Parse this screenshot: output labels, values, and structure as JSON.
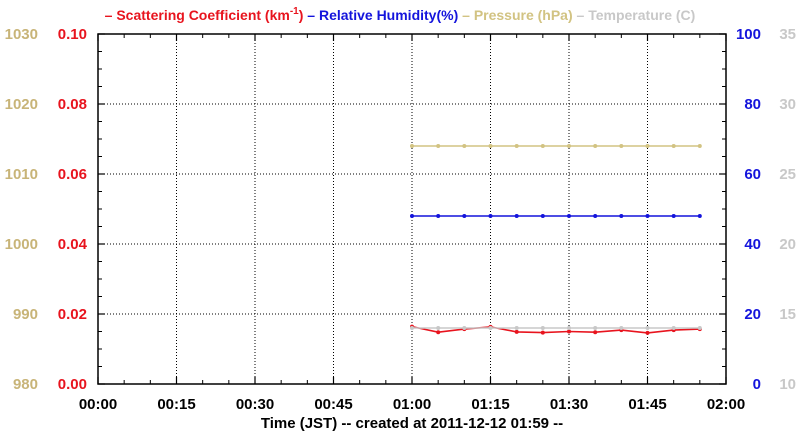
{
  "chart_data": {
    "type": "line",
    "legend": [
      {
        "key": "scat",
        "label": "Scattering Coefficient (km",
        "sup": "-1",
        "suffix": ")",
        "color": "#e8141e"
      },
      {
        "key": "rh",
        "label": "Relative Humidity(%)",
        "color": "#1414dc"
      },
      {
        "key": "pres",
        "label": "Pressure (hPa)",
        "color": "#d2c382"
      },
      {
        "key": "temp",
        "label": "Temperature (",
        "suffix": "C)",
        "color": "#c8c8c8"
      }
    ],
    "legend_dash": "–",
    "xlabel": "Time (JST)",
    "created_note": "-- created at 2011-12-12 01:59 --",
    "x_ticks": [
      "00:00",
      "00:15",
      "00:30",
      "00:45",
      "01:00",
      "01:15",
      "01:30",
      "01:45",
      "02:00"
    ],
    "xlim_minutes": [
      0,
      120
    ],
    "axes": {
      "pressure": {
        "ticks": [
          "1030",
          "1020",
          "1010",
          "1000",
          "990",
          "980"
        ],
        "range": [
          980,
          1030
        ],
        "color": "#c8b478"
      },
      "scattering": {
        "ticks": [
          "0.10",
          "0.08",
          "0.06",
          "0.04",
          "0.02",
          "0.00"
        ],
        "range": [
          0,
          0.1
        ],
        "color": "#e8141e"
      },
      "humidity": {
        "ticks": [
          "100",
          "80",
          "60",
          "40",
          "20",
          "0"
        ],
        "range": [
          0,
          100
        ],
        "color": "#1414dc"
      },
      "temperature": {
        "ticks": [
          "35",
          "30",
          "25",
          "20",
          "15",
          "10"
        ],
        "range": [
          10,
          35
        ],
        "color": "#c8c8c8"
      }
    },
    "grid": true,
    "series": [
      {
        "name": "Pressure (hPa)",
        "axis": "pressure",
        "color": "#d2c382",
        "x_minutes": [
          60,
          65,
          70,
          75,
          80,
          85,
          90,
          95,
          100,
          105,
          110,
          115
        ],
        "values": [
          1014,
          1014,
          1014,
          1014,
          1014,
          1014,
          1014,
          1014,
          1014,
          1014,
          1014,
          1014
        ]
      },
      {
        "name": "Relative Humidity(%)",
        "axis": "humidity",
        "color": "#1414dc",
        "x_minutes": [
          60,
          65,
          70,
          75,
          80,
          85,
          90,
          95,
          100,
          105,
          110,
          115
        ],
        "values": [
          48,
          48,
          48,
          48,
          48,
          48,
          48,
          48,
          48,
          48,
          48,
          48
        ]
      },
      {
        "name": "Scattering Coefficient",
        "axis": "scattering",
        "color": "#e8141e",
        "x_minutes": [
          60,
          65,
          70,
          75,
          80,
          85,
          90,
          95,
          100,
          105,
          110,
          115
        ],
        "values": [
          0.0164,
          0.0148,
          0.0157,
          0.0163,
          0.0149,
          0.0147,
          0.015,
          0.0148,
          0.0154,
          0.0146,
          0.0154,
          0.0157
        ]
      },
      {
        "name": "Temperature",
        "axis": "temperature",
        "color": "#c8c8c8",
        "x_minutes": [
          60,
          65,
          70,
          75,
          80,
          85,
          90,
          95,
          100,
          105,
          110,
          115
        ],
        "values": [
          14,
          14,
          14,
          14,
          14,
          14,
          14,
          14,
          14,
          14,
          14,
          14
        ]
      }
    ]
  }
}
